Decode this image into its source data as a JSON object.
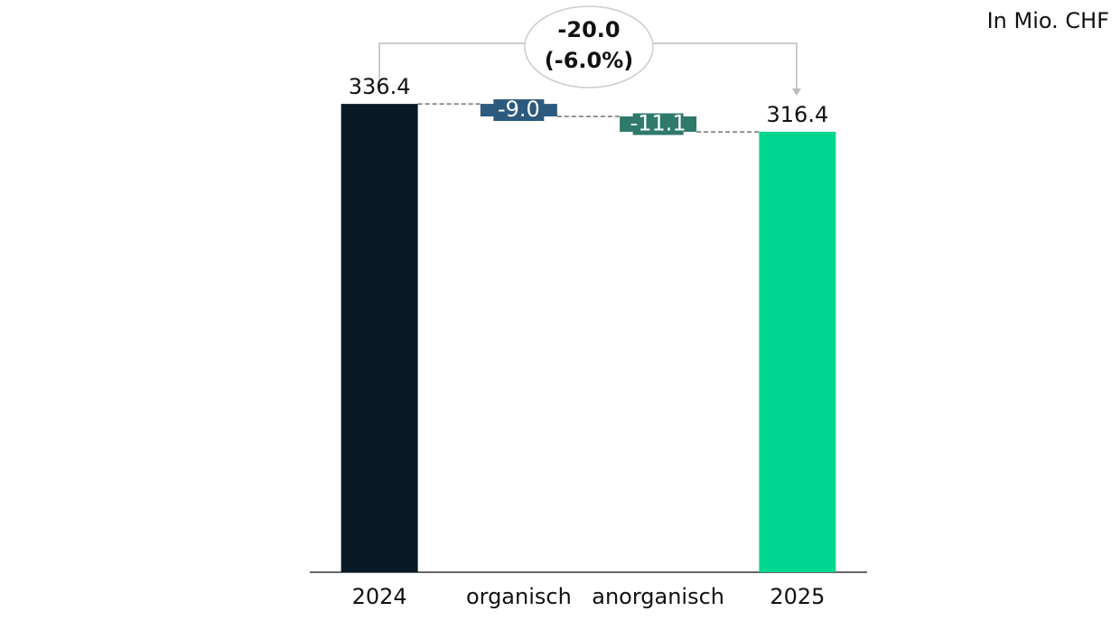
{
  "chart_data": {
    "type": "waterfall",
    "unit_note": "In Mio. CHF",
    "categories": [
      "2024",
      "organisch",
      "anorganisch",
      "2025"
    ],
    "values": [
      336.4,
      -9.0,
      -11.1,
      316.4
    ],
    "value_labels": [
      "336.4",
      "-9.0",
      "-11.1",
      "316.4"
    ],
    "is_total": [
      true,
      false,
      false,
      true
    ],
    "colors": [
      "#071a26",
      "#2c5a7e",
      "#2f7a6a",
      "#00d68f"
    ],
    "change_label": "-20.0",
    "change_pct_label": "(-6.0%)",
    "ylim": [
      0,
      400
    ]
  }
}
